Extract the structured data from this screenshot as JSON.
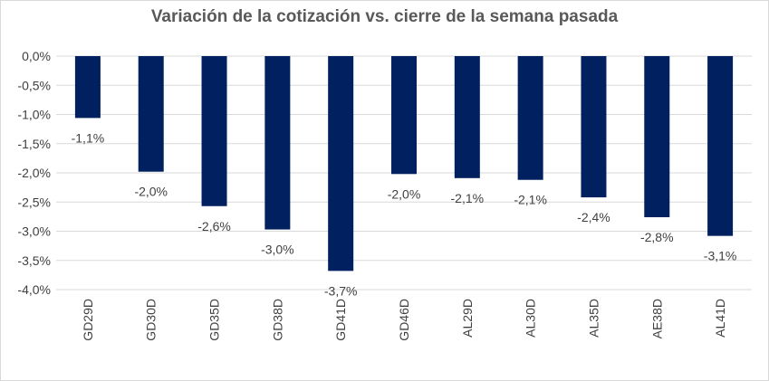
{
  "chart_data": {
    "type": "bar",
    "title": "Variación de la cotización vs. cierre de la semana pasada",
    "categories": [
      "GD29D",
      "GD30D",
      "GD35D",
      "GD38D",
      "GD41D",
      "GD46D",
      "AL29D",
      "AL30D",
      "AL35D",
      "AE38D",
      "AL41D"
    ],
    "values": [
      -1.06,
      -1.98,
      -2.57,
      -2.97,
      -3.68,
      -2.02,
      -2.09,
      -2.12,
      -2.42,
      -2.76,
      -3.08
    ],
    "data_labels": [
      "-1,1%",
      "-2,0%",
      "-2,6%",
      "-3,0%",
      "-3,7%",
      "-2,0%",
      "-2,1%",
      "-2,1%",
      "-2,4%",
      "-2,8%",
      "-3,1%"
    ],
    "y_ticks": [
      "0,0%",
      "-0,5%",
      "-1,0%",
      "-1,5%",
      "-2,0%",
      "-2,5%",
      "-3,0%",
      "-3,5%",
      "-4,0%"
    ],
    "ylim": [
      -4.0,
      0.0
    ],
    "xlabel": "",
    "ylabel": "",
    "grid": true,
    "legend": "none",
    "bar_color": "#002060",
    "grid_color": "#d9d9d9"
  }
}
